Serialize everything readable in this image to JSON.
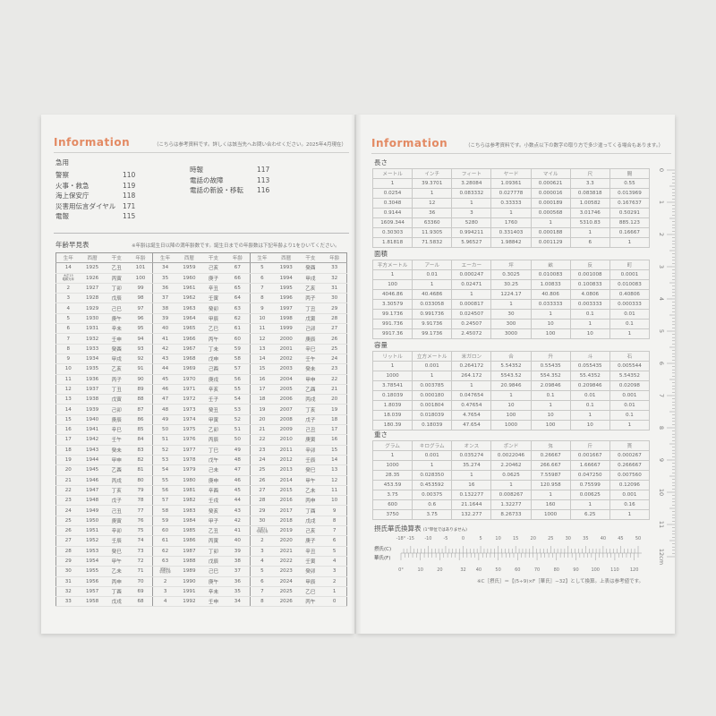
{
  "left": {
    "title": "Information",
    "note": "（こちらは参考資料です。詳しくは該当先へお問い合わせください。2025年4月現在）",
    "emergency": {
      "heading": "急用",
      "col1": [
        {
          "label": "警察",
          "number": "110"
        },
        {
          "label": "火事・救急",
          "number": "119"
        },
        {
          "label": "海上保安庁",
          "number": "118"
        },
        {
          "label": "災害用伝言ダイヤル",
          "number": "171"
        },
        {
          "label": "電報",
          "number": "115"
        }
      ],
      "col2": [
        {
          "label": "時報",
          "number": "117"
        },
        {
          "label": "電話の故障",
          "number": "113"
        },
        {
          "label": "電話の新設・移転",
          "number": "116"
        }
      ]
    },
    "age_table": {
      "heading": "年齢早見表",
      "note": "※年齢は誕生日以降の満年齢数です。誕生日までの年齢数は下記年齢より1をひいてください。",
      "headers": [
        "生年",
        "西暦",
        "干支",
        "年齢"
      ],
      "groups": [
        [
          [
            "14",
            "1925",
            "乙丑",
            "101"
          ],
          [
            "大正15 昭和元年",
            "1926",
            "丙寅",
            "100"
          ],
          [
            "2",
            "1927",
            "丁卯",
            "99"
          ],
          [
            "3",
            "1928",
            "戊辰",
            "98"
          ],
          [
            "4",
            "1929",
            "己巳",
            "97"
          ],
          [
            "5",
            "1930",
            "庚午",
            "96"
          ],
          [
            "6",
            "1931",
            "辛未",
            "95"
          ],
          [
            "7",
            "1932",
            "壬申",
            "94"
          ],
          [
            "8",
            "1933",
            "癸酉",
            "93"
          ],
          [
            "9",
            "1934",
            "甲戌",
            "92"
          ],
          [
            "10",
            "1935",
            "乙亥",
            "91"
          ],
          [
            "11",
            "1936",
            "丙子",
            "90"
          ],
          [
            "12",
            "1937",
            "丁丑",
            "89"
          ],
          [
            "13",
            "1938",
            "戊寅",
            "88"
          ],
          [
            "14",
            "1939",
            "己卯",
            "87"
          ],
          [
            "15",
            "1940",
            "庚辰",
            "86"
          ],
          [
            "16",
            "1941",
            "辛巳",
            "85"
          ],
          [
            "17",
            "1942",
            "壬午",
            "84"
          ],
          [
            "18",
            "1943",
            "癸未",
            "83"
          ],
          [
            "19",
            "1944",
            "甲申",
            "82"
          ],
          [
            "20",
            "1945",
            "乙酉",
            "81"
          ],
          [
            "21",
            "1946",
            "丙戌",
            "80"
          ],
          [
            "22",
            "1947",
            "丁亥",
            "79"
          ],
          [
            "23",
            "1948",
            "戊子",
            "78"
          ],
          [
            "24",
            "1949",
            "己丑",
            "77"
          ],
          [
            "25",
            "1950",
            "庚寅",
            "76"
          ],
          [
            "26",
            "1951",
            "辛卯",
            "75"
          ],
          [
            "27",
            "1952",
            "壬辰",
            "74"
          ],
          [
            "28",
            "1953",
            "癸巳",
            "73"
          ],
          [
            "29",
            "1954",
            "甲午",
            "72"
          ],
          [
            "30",
            "1955",
            "乙未",
            "71"
          ],
          [
            "31",
            "1956",
            "丙申",
            "70"
          ],
          [
            "32",
            "1957",
            "丁酉",
            "69"
          ],
          [
            "33",
            "1958",
            "戊戌",
            "68"
          ]
        ],
        [
          [
            "34",
            "1959",
            "己亥",
            "67"
          ],
          [
            "35",
            "1960",
            "庚子",
            "66"
          ],
          [
            "36",
            "1961",
            "辛丑",
            "65"
          ],
          [
            "37",
            "1962",
            "壬寅",
            "64"
          ],
          [
            "38",
            "1963",
            "癸卯",
            "63"
          ],
          [
            "39",
            "1964",
            "甲辰",
            "62"
          ],
          [
            "40",
            "1965",
            "乙巳",
            "61"
          ],
          [
            "41",
            "1966",
            "丙午",
            "60"
          ],
          [
            "42",
            "1967",
            "丁未",
            "59"
          ],
          [
            "43",
            "1968",
            "戊申",
            "58"
          ],
          [
            "44",
            "1969",
            "己酉",
            "57"
          ],
          [
            "45",
            "1970",
            "庚戌",
            "56"
          ],
          [
            "46",
            "1971",
            "辛亥",
            "55"
          ],
          [
            "47",
            "1972",
            "壬子",
            "54"
          ],
          [
            "48",
            "1973",
            "癸丑",
            "53"
          ],
          [
            "49",
            "1974",
            "甲寅",
            "52"
          ],
          [
            "50",
            "1975",
            "乙卯",
            "51"
          ],
          [
            "51",
            "1976",
            "丙辰",
            "50"
          ],
          [
            "52",
            "1977",
            "丁巳",
            "49"
          ],
          [
            "53",
            "1978",
            "戊午",
            "48"
          ],
          [
            "54",
            "1979",
            "己未",
            "47"
          ],
          [
            "55",
            "1980",
            "庚申",
            "46"
          ],
          [
            "56",
            "1981",
            "辛酉",
            "45"
          ],
          [
            "57",
            "1982",
            "壬戌",
            "44"
          ],
          [
            "58",
            "1983",
            "癸亥",
            "43"
          ],
          [
            "59",
            "1984",
            "甲子",
            "42"
          ],
          [
            "60",
            "1985",
            "乙丑",
            "41"
          ],
          [
            "61",
            "1986",
            "丙寅",
            "40"
          ],
          [
            "62",
            "1987",
            "丁卯",
            "39"
          ],
          [
            "63",
            "1988",
            "戊辰",
            "38"
          ],
          [
            "昭和64 平成元年",
            "1989",
            "己巳",
            "37"
          ],
          [
            "2",
            "1990",
            "庚午",
            "36"
          ],
          [
            "3",
            "1991",
            "辛未",
            "35"
          ],
          [
            "4",
            "1992",
            "壬申",
            "34"
          ]
        ],
        [
          [
            "5",
            "1993",
            "癸酉",
            "33"
          ],
          [
            "6",
            "1994",
            "甲戌",
            "32"
          ],
          [
            "7",
            "1995",
            "乙亥",
            "31"
          ],
          [
            "8",
            "1996",
            "丙子",
            "30"
          ],
          [
            "9",
            "1997",
            "丁丑",
            "29"
          ],
          [
            "10",
            "1998",
            "戊寅",
            "28"
          ],
          [
            "11",
            "1999",
            "己卯",
            "27"
          ],
          [
            "12",
            "2000",
            "庚辰",
            "26"
          ],
          [
            "13",
            "2001",
            "辛巳",
            "25"
          ],
          [
            "14",
            "2002",
            "壬午",
            "24"
          ],
          [
            "15",
            "2003",
            "癸未",
            "23"
          ],
          [
            "16",
            "2004",
            "甲申",
            "22"
          ],
          [
            "17",
            "2005",
            "乙酉",
            "21"
          ],
          [
            "18",
            "2006",
            "丙戌",
            "20"
          ],
          [
            "19",
            "2007",
            "丁亥",
            "19"
          ],
          [
            "20",
            "2008",
            "戊子",
            "18"
          ],
          [
            "21",
            "2009",
            "己丑",
            "17"
          ],
          [
            "22",
            "2010",
            "庚寅",
            "16"
          ],
          [
            "23",
            "2011",
            "辛卯",
            "15"
          ],
          [
            "24",
            "2012",
            "壬辰",
            "14"
          ],
          [
            "25",
            "2013",
            "癸巳",
            "13"
          ],
          [
            "26",
            "2014",
            "甲午",
            "12"
          ],
          [
            "27",
            "2015",
            "乙未",
            "11"
          ],
          [
            "28",
            "2016",
            "丙申",
            "10"
          ],
          [
            "29",
            "2017",
            "丁酉",
            "9"
          ],
          [
            "30",
            "2018",
            "戊戌",
            "8"
          ],
          [
            "平成31 令和元年",
            "2019",
            "己亥",
            "7"
          ],
          [
            "2",
            "2020",
            "庚子",
            "6"
          ],
          [
            "3",
            "2021",
            "辛丑",
            "5"
          ],
          [
            "4",
            "2022",
            "壬寅",
            "4"
          ],
          [
            "5",
            "2023",
            "癸卯",
            "3"
          ],
          [
            "6",
            "2024",
            "甲辰",
            "2"
          ],
          [
            "7",
            "2025",
            "乙巳",
            "1"
          ],
          [
            "8",
            "2026",
            "丙午",
            "0"
          ]
        ]
      ]
    }
  },
  "right": {
    "title": "Information",
    "note": "（こちらは参考資料です。小数点以下の数字の取り方で多少違ってくる場合もあります。）",
    "tables": [
      {
        "heading": "長さ",
        "headers": [
          "メートル",
          "インチ",
          "フィート",
          "ヤード",
          "マイル",
          "尺",
          "間"
        ],
        "rows": [
          [
            "1",
            "39.3701",
            "3.28084",
            "1.09361",
            "0.000621",
            "3.3",
            "0.55"
          ],
          [
            "0.0254",
            "1",
            "0.083332",
            "0.027778",
            "0.000016",
            "0.083818",
            "0.013969"
          ],
          [
            "0.3048",
            "12",
            "1",
            "0.33333",
            "0.000189",
            "1.00582",
            "0.167637"
          ],
          [
            "0.9144",
            "36",
            "3",
            "1",
            "0.000568",
            "3.01746",
            "0.50291"
          ],
          [
            "1609.344",
            "63360",
            "5280",
            "1760",
            "1",
            "5310.83",
            "885.123"
          ],
          [
            "0.30303",
            "11.9305",
            "0.994211",
            "0.331403",
            "0.000188",
            "1",
            "0.16667"
          ],
          [
            "1.81818",
            "71.5832",
            "5.96527",
            "1.98842",
            "0.001129",
            "6",
            "1"
          ]
        ]
      },
      {
        "heading": "面積",
        "headers": [
          "平方メートル",
          "アール",
          "エーカー",
          "坪",
          "畝",
          "反",
          "町"
        ],
        "rows": [
          [
            "1",
            "0.01",
            "0.000247",
            "0.3025",
            "0.010083",
            "0.001008",
            "0.0001"
          ],
          [
            "100",
            "1",
            "0.02471",
            "30.25",
            "1.00833",
            "0.100833",
            "0.010083"
          ],
          [
            "4046.86",
            "40.4686",
            "1",
            "1224.17",
            "40.806",
            "4.0806",
            "0.40806"
          ],
          [
            "3.30579",
            "0.033058",
            "0.000817",
            "1",
            "0.033333",
            "0.003333",
            "0.000333"
          ],
          [
            "99.1736",
            "0.991736",
            "0.024507",
            "30",
            "1",
            "0.1",
            "0.01"
          ],
          [
            "991.736",
            "9.91736",
            "0.24507",
            "300",
            "10",
            "1",
            "0.1"
          ],
          [
            "9917.36",
            "99.1736",
            "2.45072",
            "3000",
            "100",
            "10",
            "1"
          ]
        ]
      },
      {
        "heading": "容量",
        "headers": [
          "リットル",
          "立方メートル",
          "米ガロン",
          "合",
          "升",
          "斗",
          "石"
        ],
        "rows": [
          [
            "1",
            "0.001",
            "0.264172",
            "5.54352",
            "0.55435",
            "0.055435",
            "0.005544"
          ],
          [
            "1000",
            "1",
            "264.172",
            "5543.52",
            "554.352",
            "55.4352",
            "5.54352"
          ],
          [
            "3.78541",
            "0.003785",
            "1",
            "20.9846",
            "2.09846",
            "0.209846",
            "0.02098"
          ],
          [
            "0.18039",
            "0.000180",
            "0.047654",
            "1",
            "0.1",
            "0.01",
            "0.001"
          ],
          [
            "1.8039",
            "0.001804",
            "0.47654",
            "10",
            "1",
            "0.1",
            "0.01"
          ],
          [
            "18.039",
            "0.018039",
            "4.7654",
            "100",
            "10",
            "1",
            "0.1"
          ],
          [
            "180.39",
            "0.18039",
            "47.654",
            "1000",
            "100",
            "10",
            "1"
          ]
        ]
      },
      {
        "heading": "重さ",
        "headers": [
          "グラム",
          "キログラム",
          "オンス",
          "ポンド",
          "匁",
          "斤",
          "貫"
        ],
        "rows": [
          [
            "1",
            "0.001",
            "0.035274",
            "0.0022046",
            "0.26667",
            "0.001667",
            "0.000267"
          ],
          [
            "1000",
            "1",
            "35.274",
            "2.20462",
            "266.667",
            "1.66667",
            "0.266667"
          ],
          [
            "28.35",
            "0.028350",
            "1",
            "0.0625",
            "7.55987",
            "0.047250",
            "0.007560"
          ],
          [
            "453.59",
            "0.453592",
            "16",
            "1",
            "120.958",
            "0.75599",
            "0.12096"
          ],
          [
            "3.75",
            "0.00375",
            "0.132277",
            "0.008267",
            "1",
            "0.00625",
            "0.001"
          ],
          [
            "600",
            "0.6",
            "21.1644",
            "1.32277",
            "160",
            "1",
            "0.16"
          ],
          [
            "3750",
            "3.75",
            "132.277",
            "8.26733",
            "1000",
            "6.25",
            "1"
          ]
        ]
      }
    ],
    "temperature": {
      "heading": "摂氏華氏換算表",
      "subheading": "(1°単位ではありません)",
      "celsius_label": "摂氏(C)",
      "fahrenheit_label": "華氏(F)",
      "celsius_ticks": [
        "-18°",
        "-15",
        "-10",
        "-5",
        "0",
        "5",
        "10",
        "15",
        "20",
        "25",
        "30",
        "35",
        "40",
        "45",
        "50"
      ],
      "fahrenheit_ticks": [
        "0°",
        "10",
        "20",
        "32",
        "40",
        "50",
        "60",
        "70",
        "80",
        "90",
        "100",
        "110",
        "120"
      ],
      "footnote": "※C［摂氏］＝【(5÷9)×F［華氏］−32】として換算。上表は参考値です。"
    },
    "ruler": {
      "labels": [
        "0",
        "1",
        "2",
        "3",
        "4",
        "5",
        "6",
        "7",
        "8",
        "9",
        "10",
        "11",
        "12cm"
      ]
    }
  },
  "colors": {
    "accent": "#e38a63",
    "paper": "#f3f3f1",
    "background": "#e9e9e7"
  }
}
